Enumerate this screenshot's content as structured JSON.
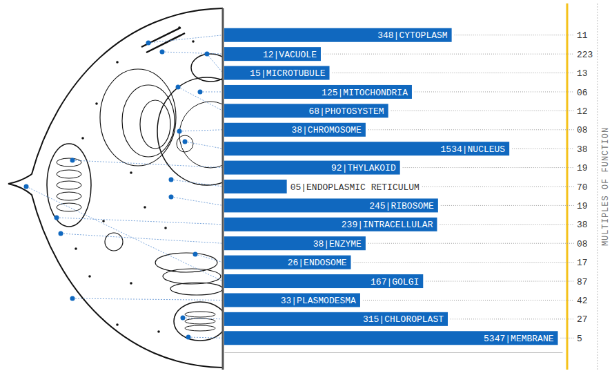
{
  "chart_data": {
    "type": "bar",
    "orientation": "horizontal",
    "log": "x",
    "xlim": [
      1,
      6000
    ],
    "tick_labels": false,
    "data_labels": true,
    "color": "#1068bf",
    "categories": [
      "CYTOPLASM",
      "VACUOLE",
      "MICROTUBULE",
      "MITOCHONDRIA",
      "PHOTOSYSTEM",
      "CHROMOSOME",
      "NUCLEUS",
      "THYLAKOID",
      "ENDOPLASMIC RETICULUM",
      "RIBOSOME",
      "INTRACELLULAR",
      "ENZYME",
      "ENDOSOME",
      "GOLGI",
      "PLASMODESMA",
      "CHLOROPLAST",
      "MEMBRANE"
    ],
    "values": [
      348,
      12,
      15,
      125,
      68,
      38,
      1534,
      92,
      5,
      245,
      239,
      38,
      26,
      167,
      33,
      315,
      5347
    ],
    "value_labels": [
      "348",
      "12",
      "15",
      "125",
      "68",
      "38",
      "1534",
      "92",
      "05",
      "245",
      "239",
      "38",
      "26",
      "167",
      "33",
      "315",
      "5347"
    ],
    "label_separator": "|",
    "multiples_of_function": {
      "title": "MULTIPLES OF FUNCTION",
      "values": [
        11,
        223,
        13,
        6,
        12,
        8,
        38,
        19,
        70,
        19,
        38,
        8,
        17,
        87,
        42,
        27,
        5
      ],
      "value_labels": [
        "11",
        "223",
        "13",
        "06",
        "12",
        "08",
        "38",
        "19",
        "70",
        "19",
        "38",
        "08",
        "17",
        "87",
        "42",
        "27",
        "5"
      ]
    }
  }
}
